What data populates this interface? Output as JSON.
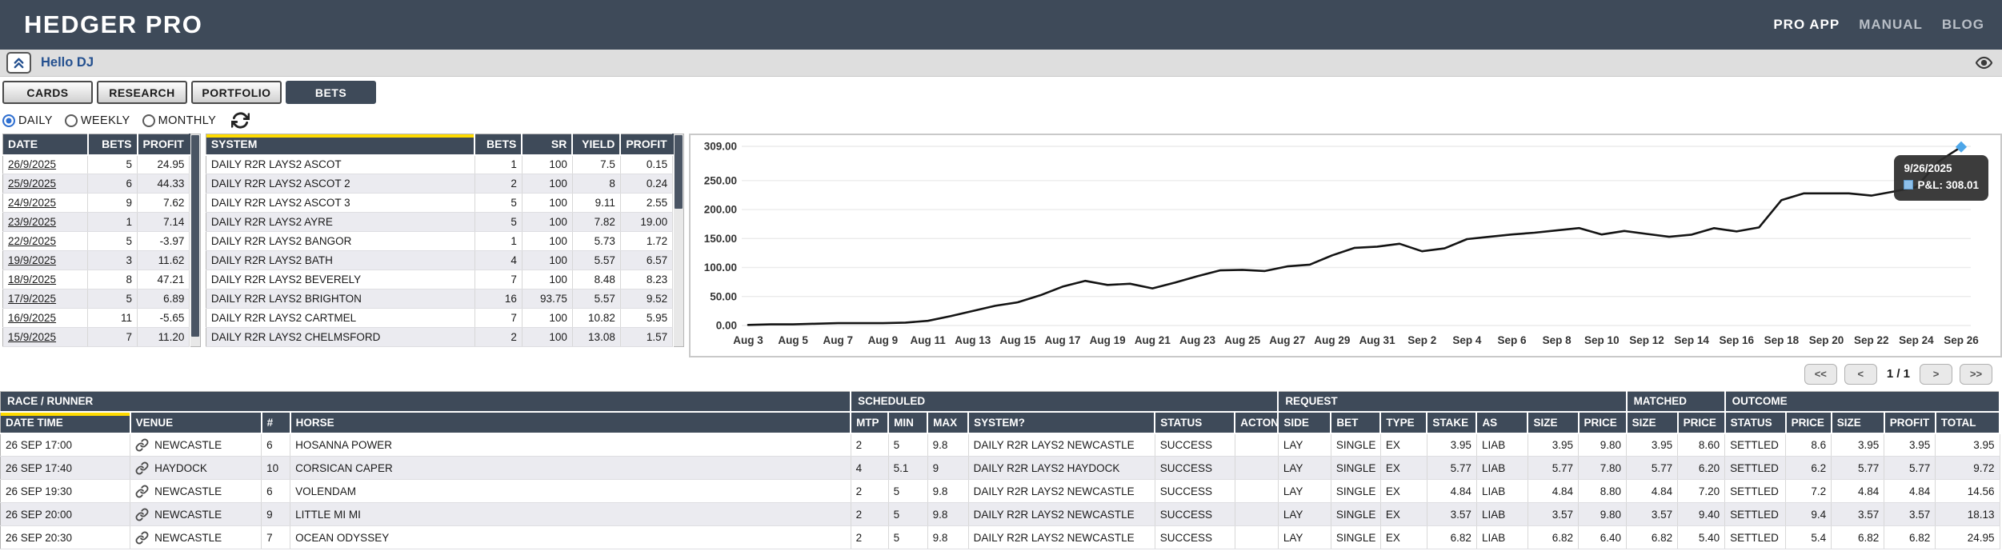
{
  "topbar": {
    "brand": "HEDGER PRO",
    "links": [
      "PRO APP",
      "MANUAL",
      "BLOG"
    ]
  },
  "hellobar": {
    "greeting": "Hello DJ"
  },
  "icons": {
    "collapse": "double-chevron-up-icon",
    "eye": "eye-icon",
    "refresh": "refresh-icon",
    "link": "chain-link-icon"
  },
  "tabs": [
    {
      "label": "CARDS",
      "active": false
    },
    {
      "label": "RESEARCH",
      "active": false
    },
    {
      "label": "PORTFOLIO",
      "active": false
    },
    {
      "label": "BETS",
      "active": true
    }
  ],
  "filters": {
    "options": [
      {
        "label": "DAILY",
        "selected": true
      },
      {
        "label": "WEEKLY",
        "selected": false
      },
      {
        "label": "MONTHLY",
        "selected": false
      }
    ]
  },
  "daily_table": {
    "columns": [
      "DATE",
      "BETS",
      "PROFIT"
    ],
    "rows": [
      [
        "26/9/2025",
        "5",
        "24.95"
      ],
      [
        "25/9/2025",
        "6",
        "44.33"
      ],
      [
        "24/9/2025",
        "9",
        "7.62"
      ],
      [
        "23/9/2025",
        "1",
        "7.14"
      ],
      [
        "22/9/2025",
        "5",
        "-3.97"
      ],
      [
        "19/9/2025",
        "3",
        "11.62"
      ],
      [
        "18/9/2025",
        "8",
        "47.21"
      ],
      [
        "17/9/2025",
        "5",
        "6.89"
      ],
      [
        "16/9/2025",
        "11",
        "-5.65"
      ],
      [
        "15/9/2025",
        "7",
        "11.20"
      ]
    ]
  },
  "system_table": {
    "columns": [
      "SYSTEM",
      "BETS",
      "SR",
      "YIELD",
      "PROFIT"
    ],
    "sorted_column": 0,
    "rows": [
      [
        "DAILY R2R LAYS2 ASCOT",
        "1",
        "100",
        "7.5",
        "0.15"
      ],
      [
        "DAILY R2R LAYS2 ASCOT 2",
        "2",
        "100",
        "8",
        "0.24"
      ],
      [
        "DAILY R2R LAYS2 ASCOT 3",
        "5",
        "100",
        "9.11",
        "2.55"
      ],
      [
        "DAILY R2R LAYS2 AYRE",
        "5",
        "100",
        "7.82",
        "19.00"
      ],
      [
        "DAILY R2R LAYS2 BANGOR",
        "1",
        "100",
        "5.73",
        "1.72"
      ],
      [
        "DAILY R2R LAYS2 BATH",
        "4",
        "100",
        "5.57",
        "6.57"
      ],
      [
        "DAILY R2R LAYS2 BEVERELY",
        "7",
        "100",
        "8.48",
        "8.23"
      ],
      [
        "DAILY R2R LAYS2 BRIGHTON",
        "16",
        "93.75",
        "5.57",
        "9.52"
      ],
      [
        "DAILY R2R LAYS2 CARTMEL",
        "7",
        "100",
        "10.82",
        "5.95"
      ],
      [
        "DAILY R2R LAYS2 CHELMSFORD",
        "2",
        "100",
        "13.08",
        "1.57"
      ]
    ]
  },
  "chart_data": {
    "type": "line",
    "title": "",
    "xlabel": "",
    "ylabel": "",
    "ylim": [
      0,
      309
    ],
    "yticks": [
      309,
      250,
      200,
      150,
      100,
      50,
      0
    ],
    "grid": "horizontal",
    "legend": "none",
    "line_color": "#141414",
    "x": [
      "Aug 3",
      "Aug 4",
      "Aug 5",
      "Aug 6",
      "Aug 7",
      "Aug 8",
      "Aug 9",
      "Aug 10",
      "Aug 11",
      "Aug 12",
      "Aug 13",
      "Aug 14",
      "Aug 15",
      "Aug 16",
      "Aug 17",
      "Aug 18",
      "Aug 19",
      "Aug 20",
      "Aug 21",
      "Aug 22",
      "Aug 23",
      "Aug 24",
      "Aug 25",
      "Aug 26",
      "Aug 27",
      "Aug 28",
      "Aug 29",
      "Aug 30",
      "Aug 31",
      "Sep 1",
      "Sep 2",
      "Sep 3",
      "Sep 4",
      "Sep 5",
      "Sep 6",
      "Sep 7",
      "Sep 8",
      "Sep 9",
      "Sep 10",
      "Sep 11",
      "Sep 12",
      "Sep 13",
      "Sep 14",
      "Sep 15",
      "Sep 16",
      "Sep 17",
      "Sep 18",
      "Sep 19",
      "Sep 20",
      "Sep 21",
      "Sep 22",
      "Sep 23",
      "Sep 24",
      "Sep 25",
      "Sep 26"
    ],
    "xtick_every": 2,
    "series": [
      {
        "name": "P&L",
        "values": [
          1,
          2,
          2,
          3,
          4,
          4,
          4,
          5,
          8,
          16,
          25,
          34,
          40,
          52,
          67,
          77,
          70,
          72,
          64,
          74,
          85,
          95,
          96,
          94,
          102,
          105,
          121,
          134,
          136,
          141,
          128,
          133,
          149,
          153,
          157,
          160,
          164,
          168,
          157,
          163,
          158,
          153,
          156.67,
          167.87,
          162.22,
          169.11,
          216.32,
          227.94,
          227.94,
          227.94,
          223.97,
          231.11,
          238.73,
          283.06,
          308.01
        ]
      }
    ],
    "tooltip": {
      "date": "9/26/2025",
      "series_label": "P&L:",
      "value": "308.01",
      "swatch_color": "#8ec0ea"
    },
    "marker_color": "#4da6e8"
  },
  "pagination": {
    "first": "<<",
    "prev": "<",
    "label": "1 / 1",
    "next": ">",
    "last": ">>"
  },
  "bets_table": {
    "groups": [
      {
        "label": "RACE / RUNNER",
        "span": 4
      },
      {
        "label": "SCHEDULED",
        "span": 6
      },
      {
        "label": "REQUEST",
        "span": 7
      },
      {
        "label": "MATCHED",
        "span": 2
      },
      {
        "label": "OUTCOME",
        "span": 5
      }
    ],
    "columns": [
      "DATE TIME",
      "VENUE",
      "#",
      "HORSE",
      "MTP",
      "MIN",
      "MAX",
      "SYSTEM?",
      "STATUS",
      "ACTON",
      "SIDE",
      "BET",
      "TYPE",
      "STAKE",
      "AS",
      "SIZE",
      "PRICE",
      "SIZE",
      "PRICE",
      "STATUS",
      "PRICE",
      "SIZE",
      "PROFIT",
      "TOTAL"
    ],
    "sorted_column": 0,
    "rows": [
      [
        "26 SEP 17:00",
        "NEWCASTLE",
        "6",
        "HOSANNA POWER",
        "2",
        "5",
        "9.8",
        "DAILY R2R LAYS2 NEWCASTLE",
        "SUCCESS",
        "",
        "LAY",
        "SINGLE",
        "EX",
        "3.95",
        "LIAB",
        "3.95",
        "9.80",
        "3.95",
        "8.60",
        "SETTLED",
        "8.6",
        "3.95",
        "3.95",
        "3.95"
      ],
      [
        "26 SEP 17:40",
        "HAYDOCK",
        "10",
        "CORSICAN CAPER",
        "4",
        "5.1",
        "9",
        "DAILY R2R LAYS2 HAYDOCK",
        "SUCCESS",
        "",
        "LAY",
        "SINGLE",
        "EX",
        "5.77",
        "LIAB",
        "5.77",
        "7.80",
        "5.77",
        "6.20",
        "SETTLED",
        "6.2",
        "5.77",
        "5.77",
        "9.72"
      ],
      [
        "26 SEP 19:30",
        "NEWCASTLE",
        "6",
        "VOLENDAM",
        "2",
        "5",
        "9.8",
        "DAILY R2R LAYS2 NEWCASTLE",
        "SUCCESS",
        "",
        "LAY",
        "SINGLE",
        "EX",
        "4.84",
        "LIAB",
        "4.84",
        "8.80",
        "4.84",
        "7.20",
        "SETTLED",
        "7.2",
        "4.84",
        "4.84",
        "14.56"
      ],
      [
        "26 SEP 20:00",
        "NEWCASTLE",
        "9",
        "LITTLE MI MI",
        "2",
        "5",
        "9.8",
        "DAILY R2R LAYS2 NEWCASTLE",
        "SUCCESS",
        "",
        "LAY",
        "SINGLE",
        "EX",
        "3.57",
        "LIAB",
        "3.57",
        "9.80",
        "3.57",
        "9.40",
        "SETTLED",
        "9.4",
        "3.57",
        "3.57",
        "18.13"
      ],
      [
        "26 SEP 20:30",
        "NEWCASTLE",
        "7",
        "OCEAN ODYSSEY",
        "2",
        "5",
        "9.8",
        "DAILY R2R LAYS2 NEWCASTLE",
        "SUCCESS",
        "",
        "LAY",
        "SINGLE",
        "EX",
        "6.82",
        "LIAB",
        "6.82",
        "6.40",
        "6.82",
        "5.40",
        "SETTLED",
        "5.4",
        "6.82",
        "6.82",
        "24.95"
      ]
    ]
  },
  "colors": {
    "header_bg": "#3e4a59",
    "accent_yellow": "#ffdb00",
    "link_blue": "#24508f",
    "radio_blue": "#2f6fd0",
    "row_alt": "#ebebf0",
    "chart_line": "#141414",
    "tooltip_bg": "#2d2d2d"
  }
}
